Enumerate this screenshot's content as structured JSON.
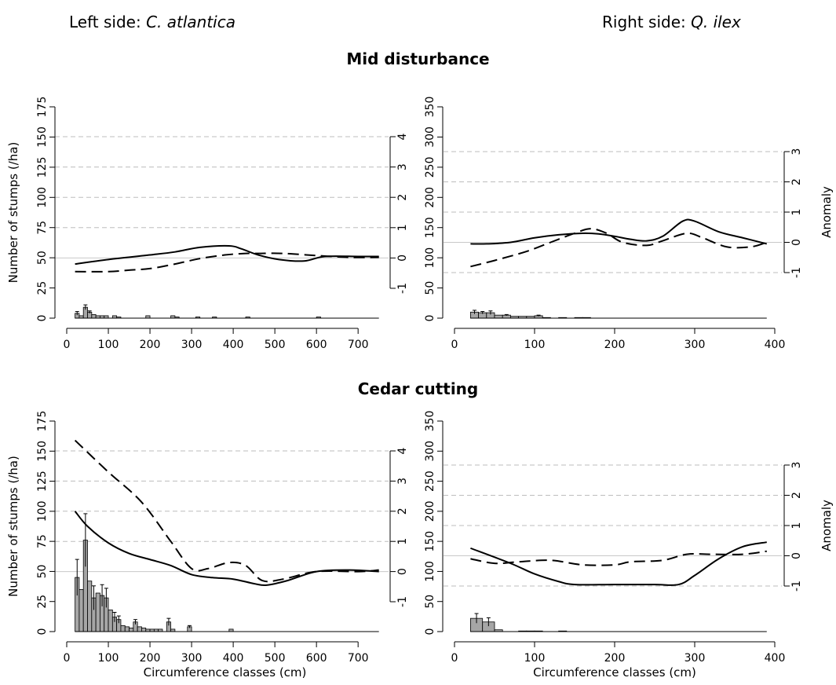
{
  "header": {
    "left_prefix": "Left side: ",
    "left_species": "C. atlantica",
    "right_prefix": "Right side: ",
    "right_species": "Q. ilex"
  },
  "chart_data": [
    {
      "id": "mid-left",
      "type": "bar+line",
      "title": "Mid disturbance",
      "xlim": [
        0,
        760
      ],
      "xticks": [
        0,
        100,
        200,
        300,
        400,
        500,
        600,
        700
      ],
      "xlabel": "",
      "ylabel": "Number of stumps (/ha)",
      "ylim": [
        0,
        175
      ],
      "yticks": [
        0,
        25,
        50,
        75,
        100,
        125,
        150,
        175
      ],
      "anomaly_axis_label": "",
      "anomaly_ylim": [
        -1,
        4
      ],
      "anomaly_ticks": [
        -1,
        0,
        1,
        2,
        3,
        4
      ],
      "anomaly_grid": [
        0,
        1,
        2,
        3,
        4
      ],
      "bars": [
        {
          "x": [
            20,
            30
          ],
          "value": 4,
          "err": 1.5
        },
        {
          "x": [
            30,
            40
          ],
          "value": 2,
          "err": 0
        },
        {
          "x": [
            40,
            50
          ],
          "value": 9,
          "err": 2
        },
        {
          "x": [
            50,
            60
          ],
          "value": 5,
          "err": 1
        },
        {
          "x": [
            60,
            70
          ],
          "value": 3,
          "err": 0
        },
        {
          "x": [
            70,
            80
          ],
          "value": 2,
          "err": 0
        },
        {
          "x": [
            80,
            90
          ],
          "value": 2,
          "err": 0
        },
        {
          "x": [
            90,
            100
          ],
          "value": 2,
          "err": 0
        },
        {
          "x": [
            110,
            120
          ],
          "value": 2,
          "err": 0
        },
        {
          "x": [
            120,
            130
          ],
          "value": 1,
          "err": 0
        },
        {
          "x": [
            190,
            200
          ],
          "value": 2,
          "err": 0
        },
        {
          "x": [
            250,
            260
          ],
          "value": 2,
          "err": 0
        },
        {
          "x": [
            260,
            270
          ],
          "value": 1,
          "err": 0
        },
        {
          "x": [
            310,
            320
          ],
          "value": 1,
          "err": 0
        },
        {
          "x": [
            350,
            360
          ],
          "value": 1,
          "err": 0
        },
        {
          "x": [
            430,
            440
          ],
          "value": 1,
          "err": 0
        },
        {
          "x": [
            600,
            610
          ],
          "value": 1,
          "err": 0
        }
      ],
      "series": [
        {
          "style": "solid",
          "x": [
            20,
            100,
            200,
            260,
            320,
            390,
            420,
            460,
            510,
            570,
            620,
            700,
            750
          ],
          "y": [
            -0.2,
            -0.05,
            0.1,
            0.2,
            0.35,
            0.4,
            0.3,
            0.1,
            -0.05,
            -0.1,
            0.05,
            0.05,
            0.05
          ]
        },
        {
          "style": "dashed",
          "x": [
            20,
            100,
            150,
            200,
            260,
            320,
            380,
            430,
            460,
            520,
            600,
            680,
            750
          ],
          "y": [
            -0.45,
            -0.45,
            -0.4,
            -0.35,
            -0.2,
            -0.02,
            0.1,
            0.15,
            0.15,
            0.15,
            0.08,
            0.02,
            0.02
          ]
        }
      ]
    },
    {
      "id": "mid-right",
      "type": "bar+line",
      "title": "",
      "xlim": [
        0,
        400
      ],
      "xticks": [
        0,
        100,
        200,
        300,
        400
      ],
      "xlabel": "",
      "ylabel": "",
      "ylim": [
        0,
        350
      ],
      "yticks": [
        0,
        50,
        100,
        150,
        200,
        250,
        300,
        350
      ],
      "anomaly_axis_label": "Anomaly",
      "anomaly_ylim": [
        -1,
        3
      ],
      "anomaly_ticks": [
        -1,
        0,
        1,
        2,
        3
      ],
      "anomaly_grid": [
        -1,
        0,
        1,
        2,
        3
      ],
      "bars": [
        {
          "x": [
            20,
            30
          ],
          "value": 10,
          "err": 3
        },
        {
          "x": [
            30,
            40
          ],
          "value": 9,
          "err": 2
        },
        {
          "x": [
            40,
            50
          ],
          "value": 9,
          "err": 3
        },
        {
          "x": [
            50,
            60
          ],
          "value": 5,
          "err": 0
        },
        {
          "x": [
            60,
            70
          ],
          "value": 5,
          "err": 1
        },
        {
          "x": [
            70,
            80
          ],
          "value": 3,
          "err": 0
        },
        {
          "x": [
            80,
            90
          ],
          "value": 3,
          "err": 0
        },
        {
          "x": [
            90,
            100
          ],
          "value": 3,
          "err": 0
        },
        {
          "x": [
            100,
            110
          ],
          "value": 4,
          "err": 1
        },
        {
          "x": [
            110,
            120
          ],
          "value": 1,
          "err": 0
        },
        {
          "x": [
            130,
            140
          ],
          "value": 1,
          "err": 0
        },
        {
          "x": [
            150,
            160
          ],
          "value": 1,
          "err": 0
        },
        {
          "x": [
            160,
            170
          ],
          "value": 1,
          "err": 0
        }
      ],
      "series": [
        {
          "style": "solid",
          "x": [
            20,
            40,
            70,
            100,
            130,
            160,
            180,
            200,
            220,
            240,
            260,
            285,
            300,
            330,
            360,
            390
          ],
          "y": [
            -0.05,
            -0.05,
            0.0,
            0.15,
            0.25,
            0.3,
            0.28,
            0.2,
            0.1,
            0.05,
            0.2,
            0.7,
            0.7,
            0.35,
            0.15,
            -0.05
          ]
        },
        {
          "style": "dashed",
          "x": [
            20,
            50,
            90,
            120,
            150,
            170,
            190,
            210,
            240,
            260,
            290,
            310,
            340,
            370,
            390
          ],
          "y": [
            -0.8,
            -0.6,
            -0.3,
            0.0,
            0.3,
            0.45,
            0.3,
            0.0,
            -0.1,
            0.05,
            0.3,
            0.15,
            -0.15,
            -0.15,
            0.0
          ]
        }
      ]
    },
    {
      "id": "cut-left",
      "type": "bar+line",
      "title": "Cedar cutting",
      "xlim": [
        0,
        760
      ],
      "xticks": [
        0,
        100,
        200,
        300,
        400,
        500,
        600,
        700
      ],
      "xlabel": "Circumference classes (cm)",
      "ylabel": "Number of stumps (/ha)",
      "ylim": [
        0,
        175
      ],
      "yticks": [
        0,
        25,
        50,
        75,
        100,
        125,
        150,
        175
      ],
      "anomaly_axis_label": "",
      "anomaly_ylim": [
        -1,
        4
      ],
      "anomaly_ticks": [
        -1,
        0,
        1,
        2,
        3,
        4
      ],
      "anomaly_grid": [
        0,
        1,
        2,
        3,
        4
      ],
      "bars": [
        {
          "x": [
            20,
            30
          ],
          "value": 45,
          "err": 15
        },
        {
          "x": [
            30,
            40
          ],
          "value": 35,
          "err": 0
        },
        {
          "x": [
            40,
            50
          ],
          "value": 76,
          "err": 22
        },
        {
          "x": [
            50,
            60
          ],
          "value": 42,
          "err": 0
        },
        {
          "x": [
            60,
            70
          ],
          "value": 28,
          "err": 10
        },
        {
          "x": [
            70,
            80
          ],
          "value": 32,
          "err": 0
        },
        {
          "x": [
            80,
            90
          ],
          "value": 30,
          "err": 9
        },
        {
          "x": [
            90,
            100
          ],
          "value": 28,
          "err": 8
        },
        {
          "x": [
            100,
            110
          ],
          "value": 18,
          "err": 0
        },
        {
          "x": [
            110,
            120
          ],
          "value": 12,
          "err": 4
        },
        {
          "x": [
            120,
            130
          ],
          "value": 10,
          "err": 3
        },
        {
          "x": [
            130,
            140
          ],
          "value": 5,
          "err": 0
        },
        {
          "x": [
            140,
            150
          ],
          "value": 4,
          "err": 0
        },
        {
          "x": [
            150,
            160
          ],
          "value": 3,
          "err": 0
        },
        {
          "x": [
            160,
            170
          ],
          "value": 8,
          "err": 2
        },
        {
          "x": [
            170,
            180
          ],
          "value": 4,
          "err": 0
        },
        {
          "x": [
            180,
            190
          ],
          "value": 3,
          "err": 0
        },
        {
          "x": [
            190,
            200
          ],
          "value": 2,
          "err": 0
        },
        {
          "x": [
            200,
            210
          ],
          "value": 2,
          "err": 0
        },
        {
          "x": [
            210,
            220
          ],
          "value": 2,
          "err": 0
        },
        {
          "x": [
            220,
            230
          ],
          "value": 2,
          "err": 0
        },
        {
          "x": [
            240,
            250
          ],
          "value": 8,
          "err": 3
        },
        {
          "x": [
            250,
            260
          ],
          "value": 2,
          "err": 0
        },
        {
          "x": [
            290,
            300
          ],
          "value": 4,
          "err": 1
        },
        {
          "x": [
            390,
            400
          ],
          "value": 2,
          "err": 0
        }
      ],
      "series": [
        {
          "style": "solid",
          "x": [
            20,
            50,
            100,
            150,
            200,
            250,
            300,
            350,
            400,
            450,
            480,
            530,
            600,
            680,
            750
          ],
          "y": [
            2.0,
            1.5,
            0.95,
            0.6,
            0.4,
            0.2,
            -0.1,
            -0.2,
            -0.25,
            -0.4,
            -0.45,
            -0.3,
            0.0,
            0.05,
            0.0
          ]
        },
        {
          "style": "dashed",
          "x": [
            20,
            100,
            180,
            250,
            300,
            340,
            390,
            430,
            470,
            520,
            600,
            700,
            750
          ],
          "y": [
            4.35,
            3.3,
            2.3,
            1.0,
            0.1,
            0.1,
            0.3,
            0.2,
            -0.3,
            -0.25,
            0.0,
            0.0,
            0.05
          ]
        }
      ]
    },
    {
      "id": "cut-right",
      "type": "bar+line",
      "title": "",
      "xlim": [
        0,
        400
      ],
      "xticks": [
        0,
        100,
        200,
        300,
        400
      ],
      "xlabel": "Circumference classes (cm)",
      "ylabel": "",
      "ylim": [
        0,
        350
      ],
      "yticks": [
        0,
        50,
        100,
        150,
        200,
        250,
        300,
        350
      ],
      "anomaly_axis_label": "Anomaly",
      "anomaly_ylim": [
        -1,
        3
      ],
      "anomaly_ticks": [
        -1,
        0,
        1,
        2,
        3
      ],
      "anomaly_grid": [
        -1,
        0,
        1,
        2,
        3
      ],
      "bars": [
        {
          "x": [
            20,
            35
          ],
          "value": 22,
          "err": 8
        },
        {
          "x": [
            35,
            50
          ],
          "value": 16,
          "err": 7
        },
        {
          "x": [
            50,
            60
          ],
          "value": 3,
          "err": 0
        },
        {
          "x": [
            80,
            90
          ],
          "value": 1,
          "err": 0
        },
        {
          "x": [
            90,
            100
          ],
          "value": 1,
          "err": 0
        },
        {
          "x": [
            100,
            110
          ],
          "value": 1,
          "err": 0
        },
        {
          "x": [
            130,
            140
          ],
          "value": 1,
          "err": 0
        }
      ],
      "series": [
        {
          "style": "solid",
          "x": [
            20,
            70,
            100,
            130,
            150,
            200,
            250,
            280,
            300,
            330,
            360,
            390
          ],
          "y": [
            0.25,
            -0.25,
            -0.6,
            -0.85,
            -0.95,
            -0.95,
            -0.95,
            -0.95,
            -0.65,
            -0.1,
            0.3,
            0.45
          ]
        },
        {
          "style": "dashed",
          "x": [
            20,
            50,
            80,
            120,
            160,
            200,
            220,
            260,
            290,
            320,
            360,
            390
          ],
          "y": [
            -0.1,
            -0.25,
            -0.2,
            -0.15,
            -0.3,
            -0.3,
            -0.2,
            -0.15,
            0.05,
            0.05,
            0.05,
            0.15
          ]
        }
      ]
    }
  ]
}
